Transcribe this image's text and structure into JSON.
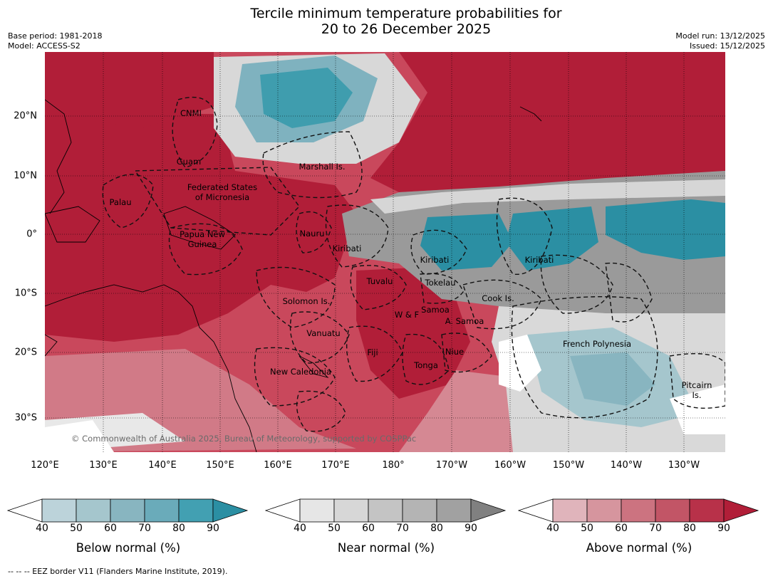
{
  "title": {
    "line1": "Tercile minimum temperature probabilities for",
    "line2": "20 to 26 December 2025"
  },
  "meta": {
    "base_period": "Base period: 1981-2018",
    "model": "Model: ACCESS-S2",
    "model_run": "Model run: 13/12/2025",
    "issued": "Issued: 15/12/2025"
  },
  "map": {
    "lon_labels": [
      "120°E",
      "130°E",
      "140°E",
      "150°E",
      "160°E",
      "170°E",
      "180°",
      "170°W",
      "160°W",
      "150°W",
      "140°W",
      "130°W"
    ],
    "lat_labels": [
      "20°N",
      "10°N",
      "0°",
      "10°S",
      "20°S",
      "30°S"
    ],
    "credit": "© Commonwealth of Australia 2025, Bureau of Meteorology, supported by COSPPac",
    "regions": [
      {
        "id": "cnmi",
        "label": "CNMI"
      },
      {
        "id": "guam",
        "label": "Guam"
      },
      {
        "id": "marshall",
        "label": "Marshall Is."
      },
      {
        "id": "palau",
        "label": "Palau"
      },
      {
        "id": "fsm",
        "label": "Federated States\nof Micronesia"
      },
      {
        "id": "png",
        "label": "Papua New\nGuinea"
      },
      {
        "id": "nauru",
        "label": "Nauru"
      },
      {
        "id": "kiribati-w",
        "label": "Kiribati"
      },
      {
        "id": "kiribati-c",
        "label": "Kiribati"
      },
      {
        "id": "kiribati-e",
        "label": "Kiribati"
      },
      {
        "id": "tuvalu",
        "label": "Tuvalu"
      },
      {
        "id": "tokelau",
        "label": "Tokelau"
      },
      {
        "id": "solomon",
        "label": "Solomon Is."
      },
      {
        "id": "cook",
        "label": "Cook Is."
      },
      {
        "id": "samoa",
        "label": "Samoa"
      },
      {
        "id": "wf",
        "label": "W & F"
      },
      {
        "id": "asamoa",
        "label": "A. Samoa"
      },
      {
        "id": "vanuatu",
        "label": "Vanuatu"
      },
      {
        "id": "fiji",
        "label": "Fiji"
      },
      {
        "id": "niue",
        "label": "Niue"
      },
      {
        "id": "tonga",
        "label": "Tonga"
      },
      {
        "id": "frpoly",
        "label": "French Polynesia"
      },
      {
        "id": "newcal",
        "label": "New Caledonia"
      },
      {
        "id": "pitcairn",
        "label": "Pitcairn\nIs."
      }
    ],
    "colors": {
      "above_strong": "#b11e38",
      "near_strong": "#8a8a8a",
      "below_strong": "#2b8fa3",
      "neutral": "#ffffff"
    }
  },
  "colorbars": [
    {
      "id": "below",
      "title": "Below normal (%)",
      "ticks": [
        "40",
        "50",
        "60",
        "70",
        "80",
        "90"
      ],
      "colors": [
        "#bcd3da",
        "#a5c6cd",
        "#88b5c0",
        "#6aabba",
        "#42a0b2",
        "#2b8fa3"
      ]
    },
    {
      "id": "near",
      "title": "Near normal (%)",
      "ticks": [
        "40",
        "50",
        "60",
        "70",
        "80",
        "90"
      ],
      "colors": [
        "#e6e6e6",
        "#d7d7d7",
        "#c4c4c4",
        "#b4b4b4",
        "#a1a1a1",
        "#808080"
      ]
    },
    {
      "id": "above",
      "title": "Above normal (%)",
      "ticks": [
        "40",
        "50",
        "60",
        "70",
        "80",
        "90"
      ],
      "colors": [
        "#e0b4bb",
        "#d6959e",
        "#cc7380",
        "#c25566",
        "#b83149",
        "#b11e38"
      ]
    }
  ],
  "footer": "--  --  -- EEZ border V11 (Flanders Marine Institute, 2019)."
}
